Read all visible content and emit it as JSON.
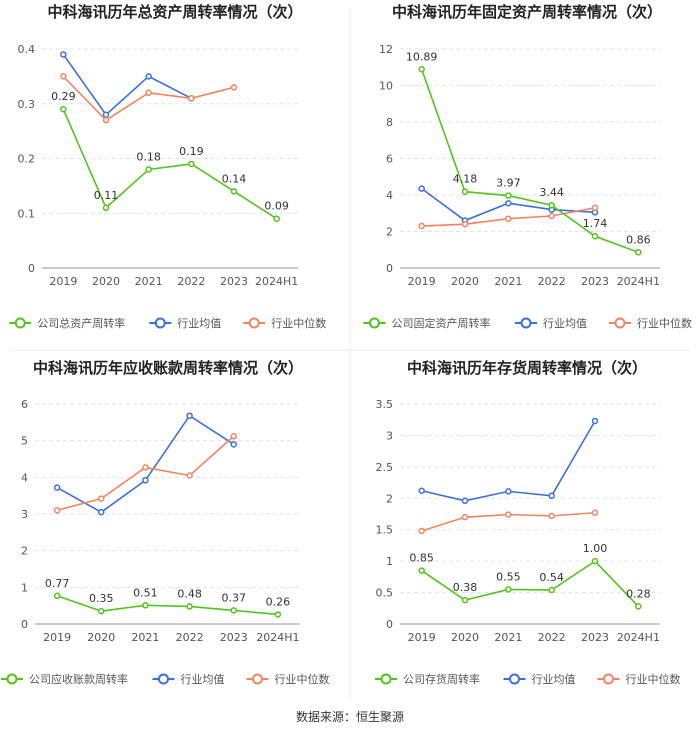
{
  "colors": {
    "company": "#52c41a",
    "industry_avg": "#3b6fe0",
    "industry_median": "#f4845f",
    "grid": "#e3e3e3",
    "axis": "#999999",
    "text": "#555555",
    "title": "#222222"
  },
  "chart_data": [
    {
      "type": "line",
      "title": "中科海讯历年总资产周转率情况（次）",
      "categories": [
        "2019",
        "2020",
        "2021",
        "2022",
        "2023",
        "2024H1"
      ],
      "yticks": [
        "0",
        "0.1",
        "0.2",
        "0.3",
        "0.4"
      ],
      "ylim": [
        0,
        0.4
      ],
      "series": [
        {
          "name": "公司总资产周转率",
          "values": [
            0.29,
            0.11,
            0.18,
            0.19,
            0.14,
            0.09
          ],
          "labels": [
            "0.29",
            "0.11",
            "0.18",
            "0.19",
            "0.14",
            "0.09"
          ]
        },
        {
          "name": "行业均值",
          "values": [
            0.39,
            0.28,
            0.35,
            0.31,
            null,
            null
          ]
        },
        {
          "name": "行业中位数",
          "values": [
            0.35,
            0.27,
            0.32,
            0.31,
            0.33,
            null
          ]
        }
      ],
      "legend": "bottom",
      "grid": true
    },
    {
      "type": "line",
      "title": "中科海讯历年固定资产周转率情况（次）",
      "categories": [
        "2019",
        "2020",
        "2021",
        "2022",
        "2023",
        "2024H1"
      ],
      "yticks": [
        "0",
        "2",
        "4",
        "6",
        "8",
        "10",
        "12"
      ],
      "ylim": [
        0,
        12
      ],
      "series": [
        {
          "name": "公司固定资产周转率",
          "values": [
            10.89,
            4.18,
            3.97,
            3.44,
            1.74,
            0.86
          ],
          "labels": [
            "10.89",
            "4.18",
            "3.97",
            "3.44",
            "1.74",
            "0.86"
          ]
        },
        {
          "name": "行业均值",
          "values": [
            4.35,
            2.6,
            3.55,
            3.2,
            3.05,
            null
          ]
        },
        {
          "name": "行业中位数",
          "values": [
            2.3,
            2.4,
            2.7,
            2.85,
            3.3,
            null
          ]
        }
      ],
      "legend": "bottom",
      "grid": true
    },
    {
      "type": "line",
      "title": "中科海讯历年应收账款周转率情况（次）",
      "categories": [
        "2019",
        "2020",
        "2021",
        "2022",
        "2023",
        "2024H1"
      ],
      "yticks": [
        "0",
        "1",
        "2",
        "3",
        "4",
        "5",
        "6"
      ],
      "ylim": [
        0,
        6
      ],
      "series": [
        {
          "name": "公司应收账款周转率",
          "values": [
            0.77,
            0.35,
            0.51,
            0.48,
            0.37,
            0.26
          ],
          "labels": [
            "0.77",
            "0.35",
            "0.51",
            "0.48",
            "0.37",
            "0.26"
          ]
        },
        {
          "name": "行业均值",
          "values": [
            3.72,
            3.05,
            3.92,
            5.68,
            4.9,
            null
          ]
        },
        {
          "name": "行业中位数",
          "values": [
            3.1,
            3.42,
            4.27,
            4.05,
            5.12,
            null
          ]
        }
      ],
      "legend": "bottom",
      "grid": true
    },
    {
      "type": "line",
      "title": "中科海讯历年存货周转率情况（次）",
      "categories": [
        "2019",
        "2020",
        "2021",
        "2022",
        "2023",
        "2024H1"
      ],
      "yticks": [
        "0",
        "0.5",
        "1",
        "1.5",
        "2",
        "2.5",
        "3",
        "3.5"
      ],
      "ylim": [
        0,
        3.5
      ],
      "series": [
        {
          "name": "公司存货周转率",
          "values": [
            0.85,
            0.38,
            0.55,
            0.54,
            1.0,
            0.28
          ],
          "labels": [
            "0.85",
            "0.38",
            "0.55",
            "0.54",
            "1.00",
            "0.28"
          ]
        },
        {
          "name": "行业均值",
          "values": [
            2.12,
            1.96,
            2.11,
            2.04,
            3.23,
            null
          ]
        },
        {
          "name": "行业中位数",
          "values": [
            1.48,
            1.7,
            1.74,
            1.72,
            1.77,
            null
          ]
        }
      ],
      "legend": "bottom",
      "grid": true
    }
  ],
  "footer": "数据来源：恒生聚源"
}
